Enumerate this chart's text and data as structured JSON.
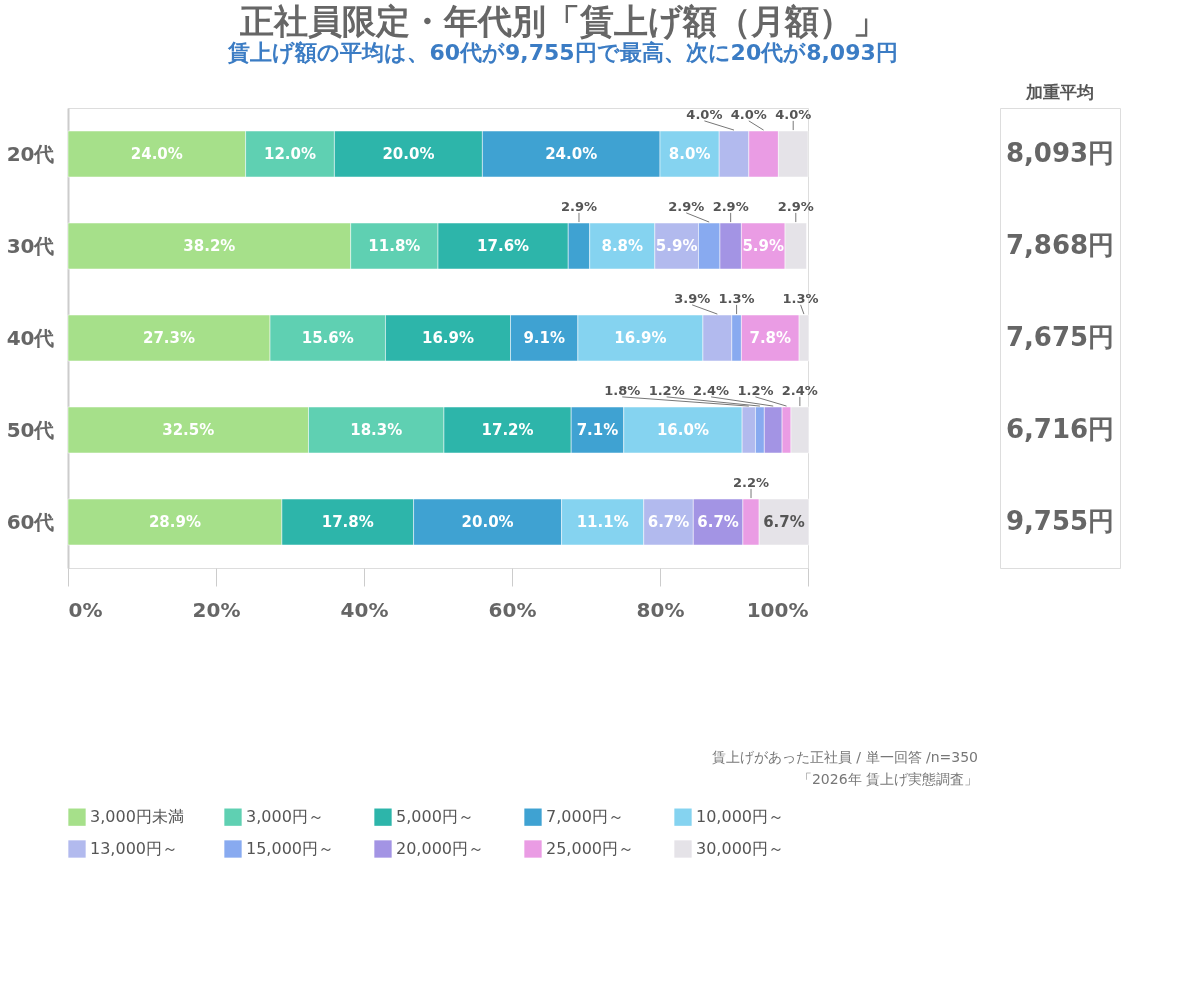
{
  "chart_data": [
    {
      "type": "bar",
      "orientation": "horizontal",
      "stacked": true,
      "title": "正社員限定・年代別「賃上げ額（月額）」",
      "subtitle": "賃上げ額の平均は、60代が9,755円で最高、次に20代が8,093円",
      "categories": [
        "20代",
        "30代",
        "40代",
        "50代",
        "60代"
      ],
      "series": [
        {
          "name": "3,000円未満",
          "color": "#a6e08a",
          "values": [
            24.0,
            38.2,
            27.3,
            32.5,
            28.9
          ],
          "value_labels": [
            "24.0%",
            "38.2%",
            "27.3%",
            "32.5%",
            "28.9%"
          ]
        },
        {
          "name": "3,000円～",
          "color": "#5fd0b2",
          "values": [
            12.0,
            11.8,
            15.6,
            18.3,
            null
          ],
          "value_labels": [
            "12.0%",
            "11.8%",
            "15.6%",
            "18.3%",
            null
          ]
        },
        {
          "name": "5,000円～",
          "color": "#2db5aa",
          "values": [
            20.0,
            17.6,
            16.9,
            17.2,
            17.8
          ],
          "value_labels": [
            "20.0%",
            "17.6%",
            "16.9%",
            "17.2%",
            "17.8%"
          ]
        },
        {
          "name": "7,000円～",
          "color": "#3fa2d2",
          "values": [
            24.0,
            2.9,
            9.1,
            7.1,
            20.0
          ],
          "value_labels": [
            "24.0%",
            "2.9%",
            "9.1%",
            "7.1%",
            "20.0%"
          ]
        },
        {
          "name": "10,000円～",
          "color": "#85d3f0",
          "values": [
            8.0,
            8.8,
            16.9,
            16.0,
            11.1
          ],
          "value_labels": [
            "8.0%",
            "8.8%",
            "16.9%",
            "16.0%",
            "11.1%"
          ]
        },
        {
          "name": "13,000円～",
          "color": "#b2baee",
          "values": [
            4.0,
            5.9,
            3.9,
            1.8,
            6.7
          ],
          "value_labels": [
            "4.0%",
            "5.9%",
            "3.9%",
            "1.8%",
            "6.7%"
          ]
        },
        {
          "name": "15,000円～",
          "color": "#88aaf0",
          "values": [
            null,
            2.9,
            1.3,
            1.2,
            null
          ],
          "value_labels": [
            null,
            "2.9%",
            "1.3%",
            "1.2%",
            null
          ]
        },
        {
          "name": "20,000円～",
          "color": "#a394e4",
          "values": [
            null,
            2.9,
            null,
            2.4,
            6.7
          ],
          "value_labels": [
            null,
            "2.9%",
            null,
            "2.4%",
            "6.7%"
          ]
        },
        {
          "name": "25,000円～",
          "color": "#ea9ce4",
          "values": [
            4.0,
            5.9,
            7.8,
            1.2,
            2.2
          ],
          "value_labels": [
            "4.0%",
            "5.9%",
            "7.8%",
            "1.2%",
            "2.2%"
          ]
        },
        {
          "name": "30,000円～",
          "color": "#e5e3e8",
          "values": [
            4.0,
            2.9,
            1.3,
            2.4,
            6.7
          ],
          "value_labels": [
            "4.0%",
            "2.9%",
            "1.3%",
            "2.4%",
            "6.7%"
          ]
        }
      ],
      "xlim": [
        0,
        100
      ],
      "xticks": [
        {
          "value": 0,
          "label": "0%"
        },
        {
          "value": 20,
          "label": "20%"
        },
        {
          "value": 40,
          "label": "40%"
        },
        {
          "value": 60,
          "label": "60%"
        },
        {
          "value": 80,
          "label": "80%"
        },
        {
          "value": 100,
          "label": "100%"
        }
      ],
      "legend": "bottom",
      "grid": false,
      "annotations": [
        "賃上げがあった正社員 / 単一回答 /n=350",
        "「2026年 賃上げ実態調査」"
      ]
    },
    {
      "type": "other",
      "title": "加重平均",
      "annotations": [
        "8,093円",
        "7,868円",
        "7,675円",
        "6,716円",
        "9,755円"
      ]
    }
  ]
}
